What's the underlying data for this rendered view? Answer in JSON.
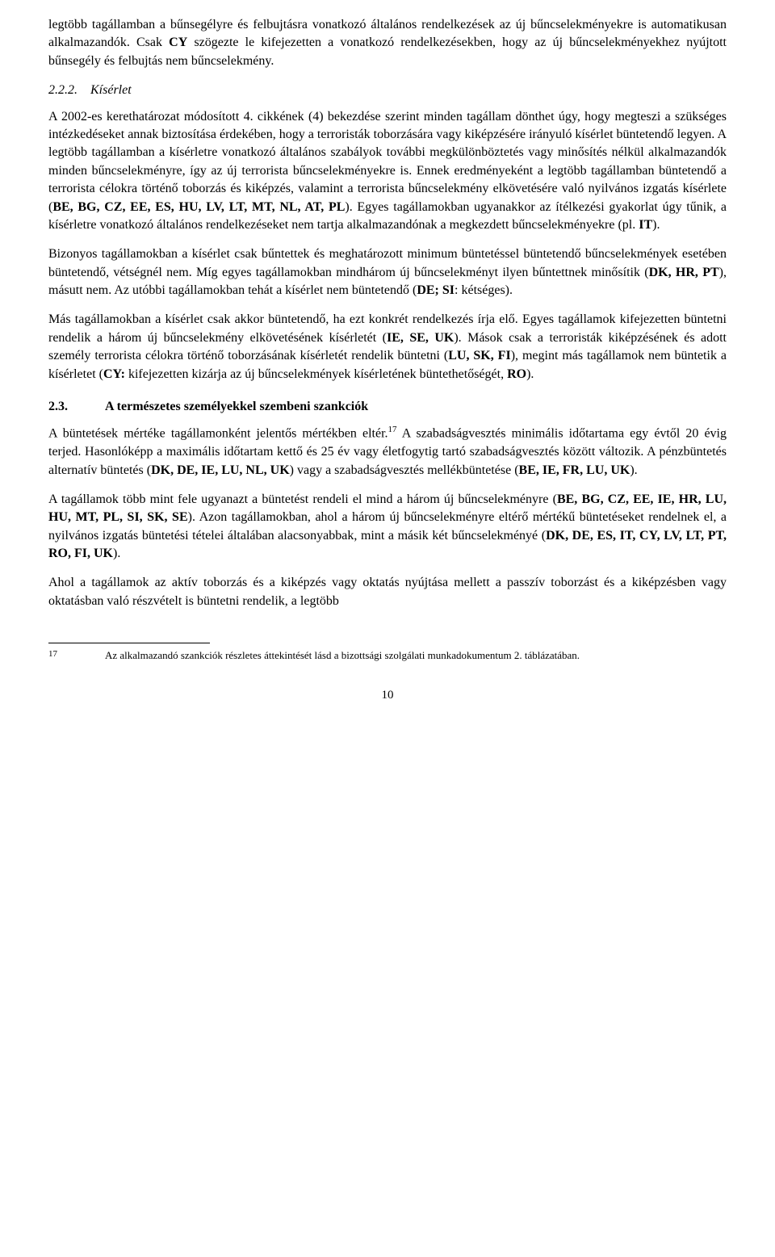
{
  "para1_a": "legtöbb tagállamban a bűnsegélyre és felbujtásra vonatkozó általános rendelkezések az új bűncselekményekre is automatikusan alkalmazandók. Csak ",
  "para1_b": "CY",
  "para1_c": " szögezte le kifejezetten a vonatkozó rendelkezésekben, hogy az új bűncselekményekhez nyújtott bűnsegély és felbujtás nem bűncselekmény.",
  "heading222_num": "2.2.2.",
  "heading222_title": "Kísérlet",
  "para2_a": "A 2002-es kerethatározat módosított 4. cikkének (4) bekezdése szerint minden tagállam dönthet úgy, hogy megteszi a szükséges intézkedéseket annak biztosítása érdekében, hogy a terroristák toborzására vagy kiképzésére irányuló kísérlet büntetendő legyen. A legtöbb tagállamban a kísérletre vonatkozó általános szabályok további megkülönböztetés vagy minősítés nélkül alkalmazandók minden bűncselekményre, így az új terrorista bűncselekményekre is. Ennek eredményeként a legtöbb tagállamban büntetendő a terrorista célokra történő toborzás és kiképzés, valamint a terrorista bűncselekmény elkövetésére való nyilvános izgatás kísérlete (",
  "para2_b": "BE, BG, CZ, EE, ES, HU, LV, LT, MT, NL, AT, PL",
  "para2_c": "). Egyes tagállamokban ugyanakkor az ítélkezési gyakorlat úgy tűnik, a kísérletre vonatkozó általános rendelkezéseket nem tartja alkalmazandónak a megkezdett bűncselekményekre (pl. ",
  "para2_d": "IT",
  "para2_e": ").",
  "para3_a": "Bizonyos tagállamokban a kísérlet csak bűntettek és meghatározott minimum büntetéssel büntetendő bűncselekmények esetében büntetendő, vétségnél nem. Míg egyes tagállamokban mindhárom új bűncselekményt ilyen bűntettnek minősítik (",
  "para3_b": "DK, HR, PT",
  "para3_c": "), másutt nem. Az utóbbi tagállamokban tehát a kísérlet nem büntetendő (",
  "para3_d": "DE; SI",
  "para3_e": ": kétséges).",
  "para4_a": "Más tagállamokban a kísérlet csak akkor büntetendő, ha ezt konkrét rendelkezés írja elő. Egyes tagállamok kifejezetten büntetni rendelik a három új bűncselekmény elkövetésének kísérletét (",
  "para4_b": "IE, SE, UK",
  "para4_c": "). Mások csak a terroristák kiképzésének és adott személy terrorista célokra történő toborzásának kísérletét rendelik büntetni (",
  "para4_d": "LU, SK, FI",
  "para4_e": "), megint más tagállamok nem büntetik a kísérletet (",
  "para4_f": "CY:",
  "para4_g": " kifejezetten kizárja az új bűncselekmények kísérletének büntethetőségét, ",
  "para4_h": "RO",
  "para4_i": ").",
  "heading23_num": "2.3.",
  "heading23_title": "A természetes személyekkel szembeni szankciók",
  "para5_a": "A büntetések mértéke tagállamonként jelentős mértékben eltér.",
  "para5_fnref": "17",
  "para5_b": " A szabadságvesztés minimális időtartama egy évtől 20 évig terjed. Hasonlóképp a maximális időtartam kettő és 25 év vagy életfogytig tartó szabadságvesztés között változik. A pénzbüntetés alternatív büntetés (",
  "para5_c": "DK, DE, IE, LU, NL, UK",
  "para5_d": ") vagy a szabadságvesztés mellékbüntetése (",
  "para5_e": "BE, IE, FR, LU, UK",
  "para5_f": ").",
  "para6_a": "A tagállamok több mint fele ugyanazt a büntetést rendeli el mind a három új bűncselekményre (",
  "para6_b": "BE, BG, CZ, EE, IE, HR, LU, HU, MT, PL, SI, SK, SE",
  "para6_c": "). Azon tagállamokban, ahol a három új bűncselekményre eltérő mértékű büntetéseket rendelnek el, a nyilvános izgatás büntetési tételei általában alacsonyabbak, mint a másik két bűncselekményé (",
  "para6_d": "DK, DE, ES, IT, CY, LV, LT, PT, RO, FI, UK",
  "para6_e": ").",
  "para7": "Ahol a tagállamok az aktív toborzás és a kiképzés vagy oktatás nyújtása mellett a passzív toborzást és a kiképzésben vagy oktatásban való részvételt is büntetni rendelik, a legtöbb",
  "footnote_num": "17",
  "footnote_text": "Az alkalmazandó szankciók részletes áttekintését lásd a bizottsági szolgálati munkadokumentum 2. táblázatában.",
  "page_number": "10"
}
